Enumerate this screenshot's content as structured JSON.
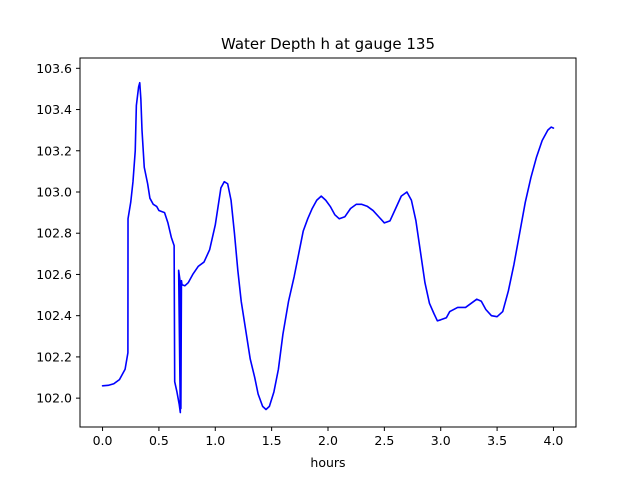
{
  "chart_data": {
    "type": "line",
    "title": "Water Depth h at gauge 135",
    "xlabel": "hours",
    "ylabel": "",
    "xlim": [
      -0.2,
      4.2
    ],
    "ylim": [
      101.86,
      103.65
    ],
    "x_ticks": [
      0.0,
      0.5,
      1.0,
      1.5,
      2.0,
      2.5,
      3.0,
      3.5,
      4.0
    ],
    "x_tick_labels": [
      "0.0",
      "0.5",
      "1.0",
      "1.5",
      "2.0",
      "2.5",
      "3.0",
      "3.5",
      "4.0"
    ],
    "y_ticks": [
      102.0,
      102.2,
      102.4,
      102.6,
      102.8,
      103.0,
      103.2,
      103.4,
      103.6
    ],
    "y_tick_labels": [
      "102.0",
      "102.2",
      "102.4",
      "102.6",
      "102.8",
      "103.0",
      "103.2",
      "103.4",
      "103.6"
    ],
    "grid": false,
    "legend": "none",
    "series": [
      {
        "color": "#0000ff",
        "points": [
          [
            0.0,
            102.06
          ],
          [
            0.05,
            102.062
          ],
          [
            0.1,
            102.07
          ],
          [
            0.15,
            102.09
          ],
          [
            0.2,
            102.14
          ],
          [
            0.225,
            102.22
          ],
          [
            0.226,
            102.87
          ],
          [
            0.25,
            102.95
          ],
          [
            0.27,
            103.05
          ],
          [
            0.29,
            103.2
          ],
          [
            0.3,
            103.42
          ],
          [
            0.32,
            103.51
          ],
          [
            0.33,
            103.53
          ],
          [
            0.34,
            103.45
          ],
          [
            0.35,
            103.3
          ],
          [
            0.37,
            103.12
          ],
          [
            0.4,
            103.04
          ],
          [
            0.42,
            102.97
          ],
          [
            0.45,
            102.94
          ],
          [
            0.48,
            102.93
          ],
          [
            0.5,
            102.91
          ],
          [
            0.55,
            102.9
          ],
          [
            0.58,
            102.85
          ],
          [
            0.61,
            102.78
          ],
          [
            0.635,
            102.74
          ],
          [
            0.64,
            102.08
          ],
          [
            0.66,
            102.03
          ],
          [
            0.68,
            101.97
          ],
          [
            0.69,
            101.93
          ],
          [
            0.675,
            102.62
          ],
          [
            0.685,
            102.58
          ],
          [
            0.69,
            102.55
          ],
          [
            0.695,
            101.95
          ],
          [
            0.7,
            102.57
          ],
          [
            0.705,
            102.55
          ],
          [
            0.73,
            102.545
          ],
          [
            0.76,
            102.56
          ],
          [
            0.8,
            102.6
          ],
          [
            0.85,
            102.64
          ],
          [
            0.9,
            102.66
          ],
          [
            0.95,
            102.72
          ],
          [
            1.0,
            102.84
          ],
          [
            1.05,
            103.02
          ],
          [
            1.08,
            103.05
          ],
          [
            1.11,
            103.04
          ],
          [
            1.14,
            102.96
          ],
          [
            1.17,
            102.8
          ],
          [
            1.2,
            102.62
          ],
          [
            1.23,
            102.47
          ],
          [
            1.27,
            102.33
          ],
          [
            1.31,
            102.19
          ],
          [
            1.35,
            102.1
          ],
          [
            1.38,
            102.02
          ],
          [
            1.42,
            101.96
          ],
          [
            1.45,
            101.945
          ],
          [
            1.48,
            101.96
          ],
          [
            1.52,
            102.03
          ],
          [
            1.56,
            102.14
          ],
          [
            1.6,
            102.31
          ],
          [
            1.65,
            102.47
          ],
          [
            1.7,
            102.59
          ],
          [
            1.74,
            102.7
          ],
          [
            1.78,
            102.81
          ],
          [
            1.82,
            102.87
          ],
          [
            1.86,
            102.92
          ],
          [
            1.9,
            102.96
          ],
          [
            1.94,
            102.98
          ],
          [
            1.98,
            102.96
          ],
          [
            2.02,
            102.93
          ],
          [
            2.06,
            102.89
          ],
          [
            2.1,
            102.87
          ],
          [
            2.15,
            102.88
          ],
          [
            2.2,
            102.92
          ],
          [
            2.25,
            102.94
          ],
          [
            2.3,
            102.94
          ],
          [
            2.35,
            102.93
          ],
          [
            2.4,
            102.91
          ],
          [
            2.45,
            102.88
          ],
          [
            2.5,
            102.85
          ],
          [
            2.55,
            102.86
          ],
          [
            2.6,
            102.92
          ],
          [
            2.65,
            102.98
          ],
          [
            2.7,
            103.0
          ],
          [
            2.74,
            102.96
          ],
          [
            2.78,
            102.86
          ],
          [
            2.82,
            102.71
          ],
          [
            2.86,
            102.56
          ],
          [
            2.9,
            102.46
          ],
          [
            2.94,
            102.41
          ],
          [
            2.97,
            102.375
          ],
          [
            3.0,
            102.38
          ],
          [
            3.05,
            102.39
          ],
          [
            3.08,
            102.42
          ],
          [
            3.15,
            102.44
          ],
          [
            3.22,
            102.44
          ],
          [
            3.27,
            102.46
          ],
          [
            3.32,
            102.48
          ],
          [
            3.36,
            102.47
          ],
          [
            3.4,
            102.43
          ],
          [
            3.45,
            102.4
          ],
          [
            3.5,
            102.395
          ],
          [
            3.55,
            102.42
          ],
          [
            3.6,
            102.52
          ],
          [
            3.65,
            102.65
          ],
          [
            3.7,
            102.8
          ],
          [
            3.75,
            102.95
          ],
          [
            3.8,
            103.07
          ],
          [
            3.85,
            103.17
          ],
          [
            3.9,
            103.25
          ],
          [
            3.95,
            103.3
          ],
          [
            3.98,
            103.315
          ],
          [
            4.0,
            103.31
          ]
        ]
      }
    ]
  }
}
